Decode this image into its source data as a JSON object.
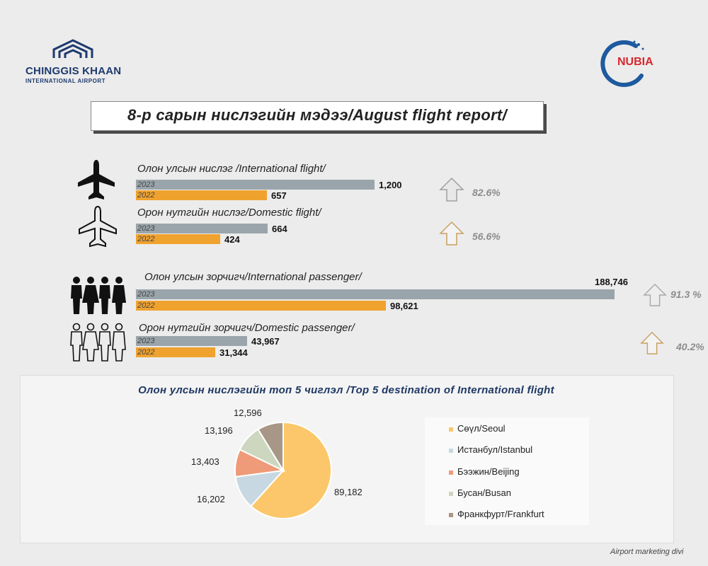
{
  "header": {
    "left_logo_name": "CHINGGIS KHAAN",
    "left_logo_sub": "INTERNATIONAL AIRPORT",
    "right_logo_text": "NUBIA",
    "title": "8-р сарын нислэгийн мэдээ/August flight report/"
  },
  "colors": {
    "y2023": "#9aa5ab",
    "y2022": "#f0a22e",
    "accent": "#1f3864"
  },
  "bar_chart_data": {
    "type": "bar",
    "orientation": "horizontal",
    "series_names": [
      "2023",
      "2022"
    ],
    "groups": [
      {
        "label": "Олон улсын нислэг /International flight/",
        "icon": "airplane-filled-icon",
        "v2023": 1200,
        "v2022": 657,
        "v2023_label": "1,200",
        "v2022_label": "657",
        "change": "82.6%"
      },
      {
        "label": "Орон нутгийн нислэг/Domestic flight/",
        "icon": "airplane-outline-icon",
        "v2023": 664,
        "v2022": 424,
        "v2023_label": "664",
        "v2022_label": "424",
        "change": "56.6%"
      },
      {
        "label": "Олон улсын зорчигч/International passenger/",
        "icon": "people-filled-icon",
        "v2023": 188746,
        "v2022": 98621,
        "v2023_label": "188,746",
        "v2022_label": "98,621",
        "change": "91.3 %"
      },
      {
        "label": "Орон нутгийн зорчигч/Domestic passenger/",
        "icon": "people-outline-icon",
        "v2023": 43967,
        "v2022": 31344,
        "v2023_label": "43,967",
        "v2022_label": "31,344",
        "change": "40.2%"
      }
    ]
  },
  "chart_data": {
    "type": "pie",
    "title": "Олон улсын нислэгийн топ 5 чиглэл /Top 5 destination  of International  flight",
    "categories": [
      "Сөүл/Seoul",
      "Истанбул/Istanbul",
      "Бээжин/Beijing",
      "Бусан/Busan",
      "Франкфурт/Frankfurt"
    ],
    "values": [
      89182,
      16202,
      13403,
      13196,
      12596
    ],
    "value_labels": [
      "89,182",
      "16,202",
      "13,403",
      "13,196",
      "12,596"
    ],
    "colors": [
      "#fbc76a",
      "#c7d8e2",
      "#ef9a78",
      "#cdd7bf",
      "#a89786"
    ],
    "legend_position": "right"
  },
  "footer": {
    "text": "Airport marketing divi"
  }
}
